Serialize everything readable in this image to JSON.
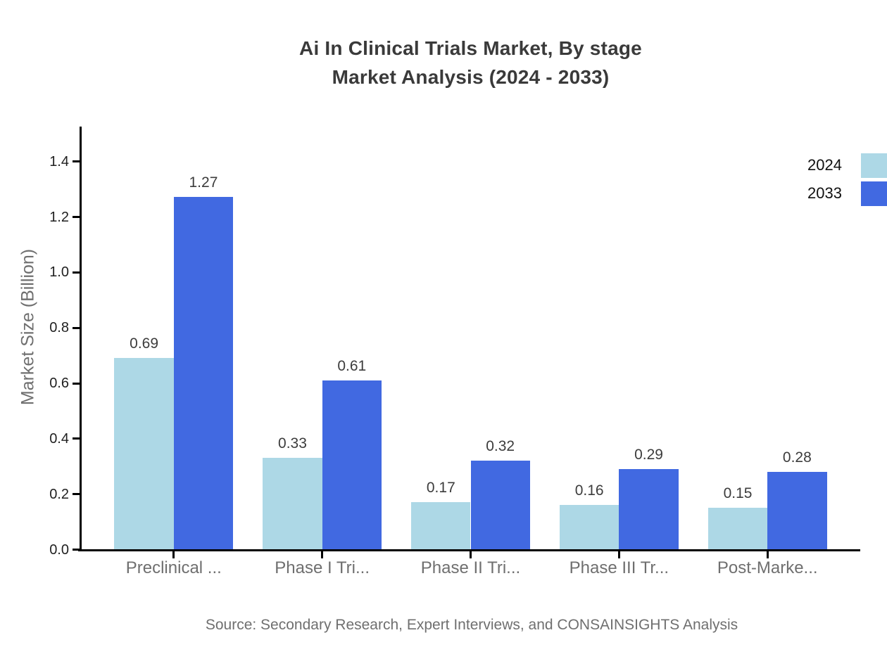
{
  "title": {
    "line1": "Ai In Clinical Trials Market, By stage",
    "line2": "Market Analysis (2024 - 2033)"
  },
  "source": "Source: Secondary Research, Expert Interviews, and CONSAINSIGHTS Analysis",
  "chart_data": {
    "type": "bar",
    "title": "Ai In Clinical Trials Market, By stage Market Analysis (2024 - 2033)",
    "categories": [
      "Preclinical ...",
      "Phase I Tri...",
      "Phase II Tri...",
      "Phase III Tr...",
      "Post-Marke..."
    ],
    "series": [
      {
        "name": "2024",
        "color": "#add8e6",
        "values": [
          0.69,
          0.33,
          0.17,
          0.16,
          0.15
        ]
      },
      {
        "name": "2033",
        "color": "#4169e1",
        "values": [
          1.27,
          0.61,
          0.32,
          0.29,
          0.28
        ]
      }
    ],
    "xlabel": "",
    "ylabel": "Market Size (Billion)",
    "yticks": [
      "0.0",
      "0.2",
      "0.4",
      "0.6",
      "0.8",
      "1.0",
      "1.2",
      "1.4"
    ],
    "ylim": [
      0,
      1.525
    ],
    "grid": false,
    "legend_position": "upper right",
    "bar_labels": true
  }
}
